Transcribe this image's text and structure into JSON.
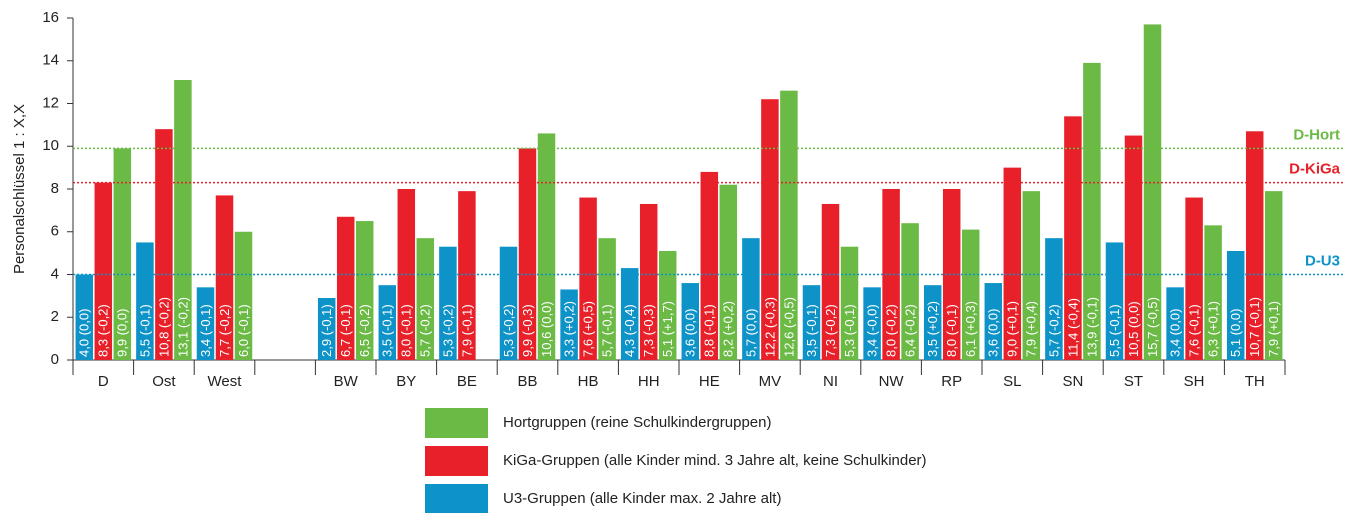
{
  "chart_data": {
    "type": "bar",
    "y_label": "Personalschlüssel 1 : X,X",
    "categories": [
      "D",
      "Ost",
      "West",
      null,
      "BW",
      "BY",
      "BE",
      "BB",
      "HB",
      "HH",
      "HE",
      "MV",
      "NI",
      "NW",
      "RP",
      "SL",
      "SN",
      "ST",
      "SH",
      "TH"
    ],
    "series": [
      {
        "name": "U3-Gruppen (alle Kinder max. 2 Jahre alt)",
        "color": "#0d93c8",
        "values": [
          4.0,
          5.5,
          3.4,
          null,
          2.9,
          3.5,
          5.3,
          5.3,
          3.3,
          4.3,
          3.6,
          5.7,
          3.5,
          3.4,
          3.5,
          3.6,
          5.7,
          5.5,
          3.4,
          5.1
        ],
        "value_labels": [
          "4,0 (0,0)",
          "5,5 (-0,1)",
          "3,4 (-0,1)",
          null,
          "2,9 (-0,1)",
          "3,5 (-0,1)",
          "5,3 (-0,2)",
          "5,3 (-0,2)",
          "3,3 (+0,2)",
          "4,3 (-0,4)",
          "3,6 (0,0)",
          "5,7 (0,0)",
          "3,5 (-0,1)",
          "3,4 (-0,0)",
          "3,5 (+0,2)",
          "3,6 (0,0)",
          "5,7 (-0,2)",
          "5,5 (-0,1)",
          "3,4 (0,0)",
          "5,1 (0,0)"
        ]
      },
      {
        "name": "KiGa-Gruppen (alle Kinder mind. 3 Jahre alt, keine Schulkinder)",
        "color": "#e8202a",
        "values": [
          8.3,
          10.8,
          7.7,
          null,
          6.7,
          8.0,
          7.9,
          9.9,
          7.6,
          7.3,
          8.8,
          12.2,
          7.3,
          8.0,
          8.0,
          9.0,
          11.4,
          10.5,
          7.6,
          10.7
        ],
        "value_labels": [
          "8,3 (-0,2)",
          "10,8 (-0,2)",
          "7,7 (-0,2)",
          null,
          "6,7 (-0,1)",
          "8,0 (-0,1)",
          "7,9 (-0,1)",
          "9,9 (-0,3)",
          "7,6 (+0,5)",
          "7,3 (-0,3)",
          "8,8 (-0,1)",
          "12,2 (-0,3)",
          "7,3 (-0,2)",
          "8,0 (-0,2)",
          "8,0 (-0,1)",
          "9,0 (+0,1)",
          "11,4 (-0,4)",
          "10,5 (0,0)",
          "7,6 (-0,1)",
          "10,7 (-0,1)"
        ]
      },
      {
        "name": "Hortgruppen (reine Schulkindergruppen)",
        "color": "#6aba45",
        "values": [
          9.9,
          13.1,
          6.0,
          null,
          6.5,
          5.7,
          null,
          10.6,
          5.7,
          5.1,
          8.2,
          12.6,
          5.3,
          6.4,
          6.1,
          7.9,
          13.9,
          15.7,
          6.3,
          7.9
        ],
        "value_labels": [
          "9,9 (0,0)",
          "13,1 (-0,2)",
          "6,0 (-0,1)",
          null,
          "6,5 (-0,2)",
          "5,7 (-0,2)",
          null,
          "10,6 (0,0)",
          "5,7 (-0,1)",
          "5,1 (+1,7)",
          "8,2 (+0,2)",
          "12,6 (-0,5)",
          "5,3 (-0,1)",
          "6,4 (-0,2)",
          "6,1 (+0,3)",
          "7,9 (+0,4)",
          "13,9 (-0,1)",
          "15,7 (-0,5)",
          "6,3 (+0,1)",
          "7,9 (+0,1)"
        ]
      }
    ],
    "reference_lines": [
      {
        "label": "D-Hort",
        "value": 9.9,
        "color": "#6aba45"
      },
      {
        "label": "D-KiGa",
        "value": 8.3,
        "color": "#e8202a"
      },
      {
        "label": "D-U3",
        "value": 4.0,
        "color": "#0d93c8"
      }
    ],
    "ylim": [
      0,
      16
    ],
    "yticks": [
      0,
      2,
      4,
      6,
      8,
      10,
      12,
      14,
      16
    ],
    "grid": false
  }
}
